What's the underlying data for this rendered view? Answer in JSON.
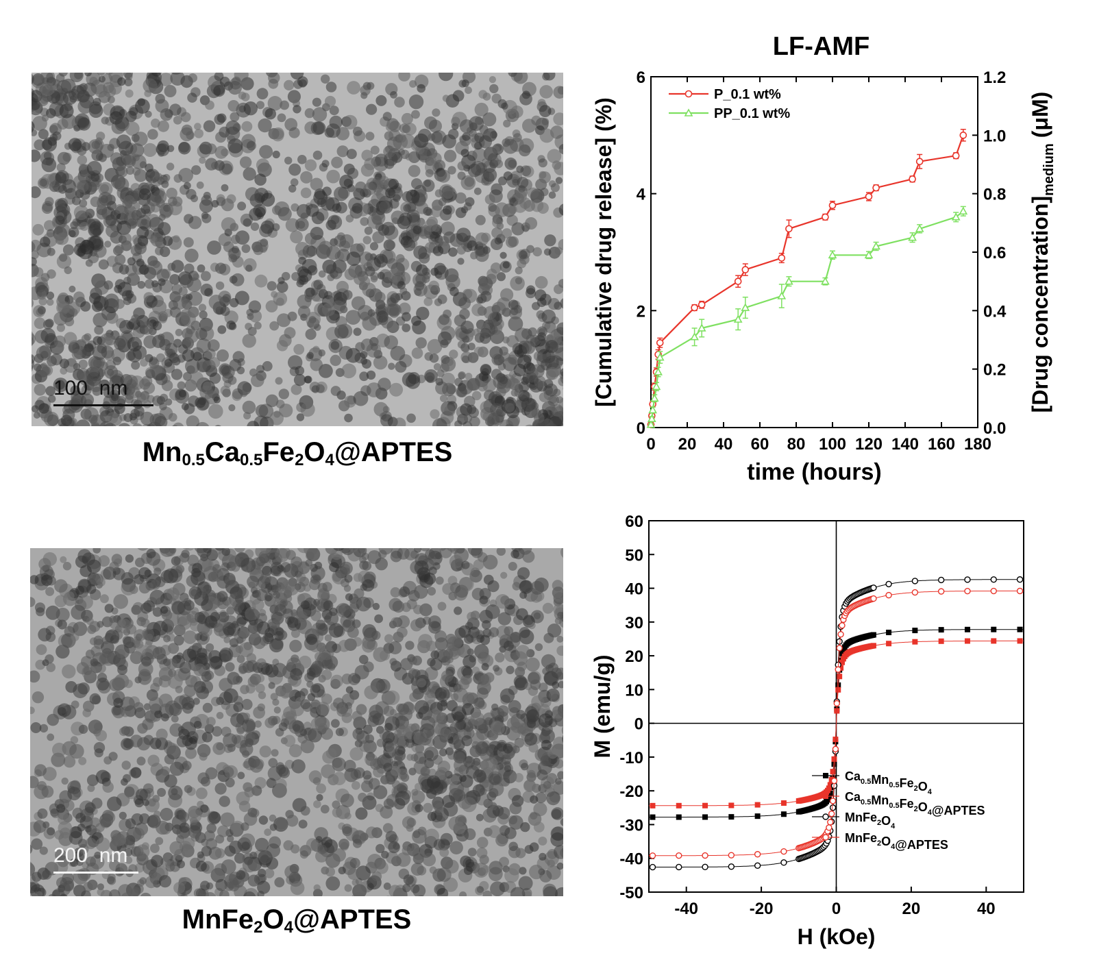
{
  "panels": {
    "tem_top": {
      "caption_parts": [
        "Mn",
        "0.5",
        "Ca",
        "0.5",
        "Fe",
        "2",
        "O",
        "4",
        "@APTES"
      ],
      "scale_label": "100  nm"
    },
    "tem_bottom": {
      "caption_parts": [
        "MnFe",
        "2",
        "O",
        "4",
        "@APTES"
      ],
      "scale_label": "200  nm"
    }
  },
  "chart_data": [
    {
      "type": "line",
      "title": "LF-AMF",
      "xlabel": "time (hours)",
      "ylabel": "[Cumulative drug release] (%)",
      "y2label_main": "[Drug concentration]",
      "y2label_sub": "medium",
      "y2label_unit": "(μM)",
      "xlim": [
        0,
        180
      ],
      "ylim": [
        0,
        6
      ],
      "y2lim": [
        0,
        1.2
      ],
      "xticks": [
        0,
        20,
        40,
        60,
        80,
        100,
        120,
        140,
        160,
        180
      ],
      "yticks": [
        0,
        2,
        4,
        6
      ],
      "y2ticks": [
        "0.0",
        "0.2",
        "0.4",
        "0.6",
        "0.8",
        "1.0",
        "1.2"
      ],
      "legend_position": "top-left",
      "series": [
        {
          "name": "P_0.1 wt%",
          "color": "#e8342a",
          "marker": "circle",
          "x": [
            0,
            0.5,
            1,
            2,
            3,
            4,
            5,
            24,
            28,
            48,
            52,
            72,
            76,
            96,
            100,
            120,
            124,
            144,
            148,
            168,
            172
          ],
          "y": [
            0.05,
            0.2,
            0.4,
            0.7,
            0.95,
            1.25,
            1.45,
            2.05,
            2.1,
            2.5,
            2.7,
            2.9,
            3.4,
            3.6,
            3.8,
            3.95,
            4.1,
            4.25,
            4.55,
            4.65,
            5.0
          ],
          "err": [
            0.02,
            0.04,
            0.05,
            0.06,
            0.07,
            0.08,
            0.08,
            0.05,
            0.06,
            0.1,
            0.1,
            0.08,
            0.15,
            0.05,
            0.07,
            0.07,
            0.05,
            0.05,
            0.12,
            0.05,
            0.1
          ]
        },
        {
          "name": "PP_0.1 wt%",
          "color": "#7ee060",
          "marker": "triangle",
          "x": [
            0,
            0.5,
            1,
            2,
            3,
            4,
            5,
            24,
            28,
            48,
            52,
            72,
            76,
            96,
            100,
            120,
            124,
            144,
            148,
            168,
            172
          ],
          "y": [
            0.05,
            0.15,
            0.3,
            0.5,
            0.7,
            0.95,
            1.2,
            1.55,
            1.7,
            1.85,
            2.05,
            2.25,
            2.5,
            2.5,
            2.95,
            2.95,
            3.1,
            3.25,
            3.4,
            3.6,
            3.7
          ],
          "err": [
            0.02,
            0.04,
            0.05,
            0.06,
            0.07,
            0.08,
            0.1,
            0.15,
            0.15,
            0.18,
            0.18,
            0.2,
            0.08,
            0.06,
            0.07,
            0.06,
            0.07,
            0.08,
            0.07,
            0.08,
            0.08
          ]
        }
      ]
    },
    {
      "type": "scatter",
      "xlabel": "H (kOe)",
      "ylabel": "M (emu/g)",
      "xlim": [
        -50,
        50
      ],
      "ylim": [
        -50,
        60
      ],
      "xticks": [
        -40,
        -20,
        0,
        20,
        40
      ],
      "yticks": [
        -50,
        -40,
        -30,
        -20,
        -10,
        0,
        10,
        20,
        30,
        40,
        50,
        60
      ],
      "legend_position": "bottom-right",
      "series": [
        {
          "name": "Ca0.5Mn0.5Fe2O4",
          "name_parts": [
            [
              "Ca",
              ""
            ],
            [
              "0.5",
              "s"
            ],
            [
              "Mn",
              ""
            ],
            [
              "0.5",
              "s"
            ],
            [
              "Fe",
              ""
            ],
            [
              "2",
              "s"
            ],
            [
              "O",
              ""
            ],
            [
              "4",
              "s"
            ]
          ],
          "ms": 27.8,
          "hk": 0.9,
          "slope": 0.07,
          "color": "#000000",
          "marker": "filled-square"
        },
        {
          "name": "Ca0.5Mn0.5Fe2O4@APTES",
          "name_parts": [
            [
              "Ca",
              ""
            ],
            [
              "0.5",
              "s"
            ],
            [
              "Mn",
              ""
            ],
            [
              "0.5",
              "s"
            ],
            [
              "Fe",
              ""
            ],
            [
              "2",
              "s"
            ],
            [
              "O",
              ""
            ],
            [
              "4",
              "s"
            ],
            [
              "@APTES",
              ""
            ]
          ],
          "ms": 24.4,
          "hk": 0.9,
          "slope": 0.07,
          "color": "#e8342a",
          "marker": "filled-square"
        },
        {
          "name": "MnFe2O4",
          "name_parts": [
            [
              "MnFe",
              ""
            ],
            [
              "2",
              "s"
            ],
            [
              "O",
              ""
            ],
            [
              "4",
              "s"
            ]
          ],
          "ms": 42.6,
          "hk": 0.9,
          "slope": 0.08,
          "color": "#000000",
          "marker": "open-circle"
        },
        {
          "name": "MnFe2O4@APTES",
          "name_parts": [
            [
              "MnFe",
              ""
            ],
            [
              "2",
              "s"
            ],
            [
              "O",
              ""
            ],
            [
              "4",
              "s"
            ],
            [
              "@APTES",
              ""
            ]
          ],
          "ms": 39.2,
          "hk": 0.9,
          "slope": 0.08,
          "color": "#e8342a",
          "marker": "open-circle"
        }
      ]
    }
  ]
}
